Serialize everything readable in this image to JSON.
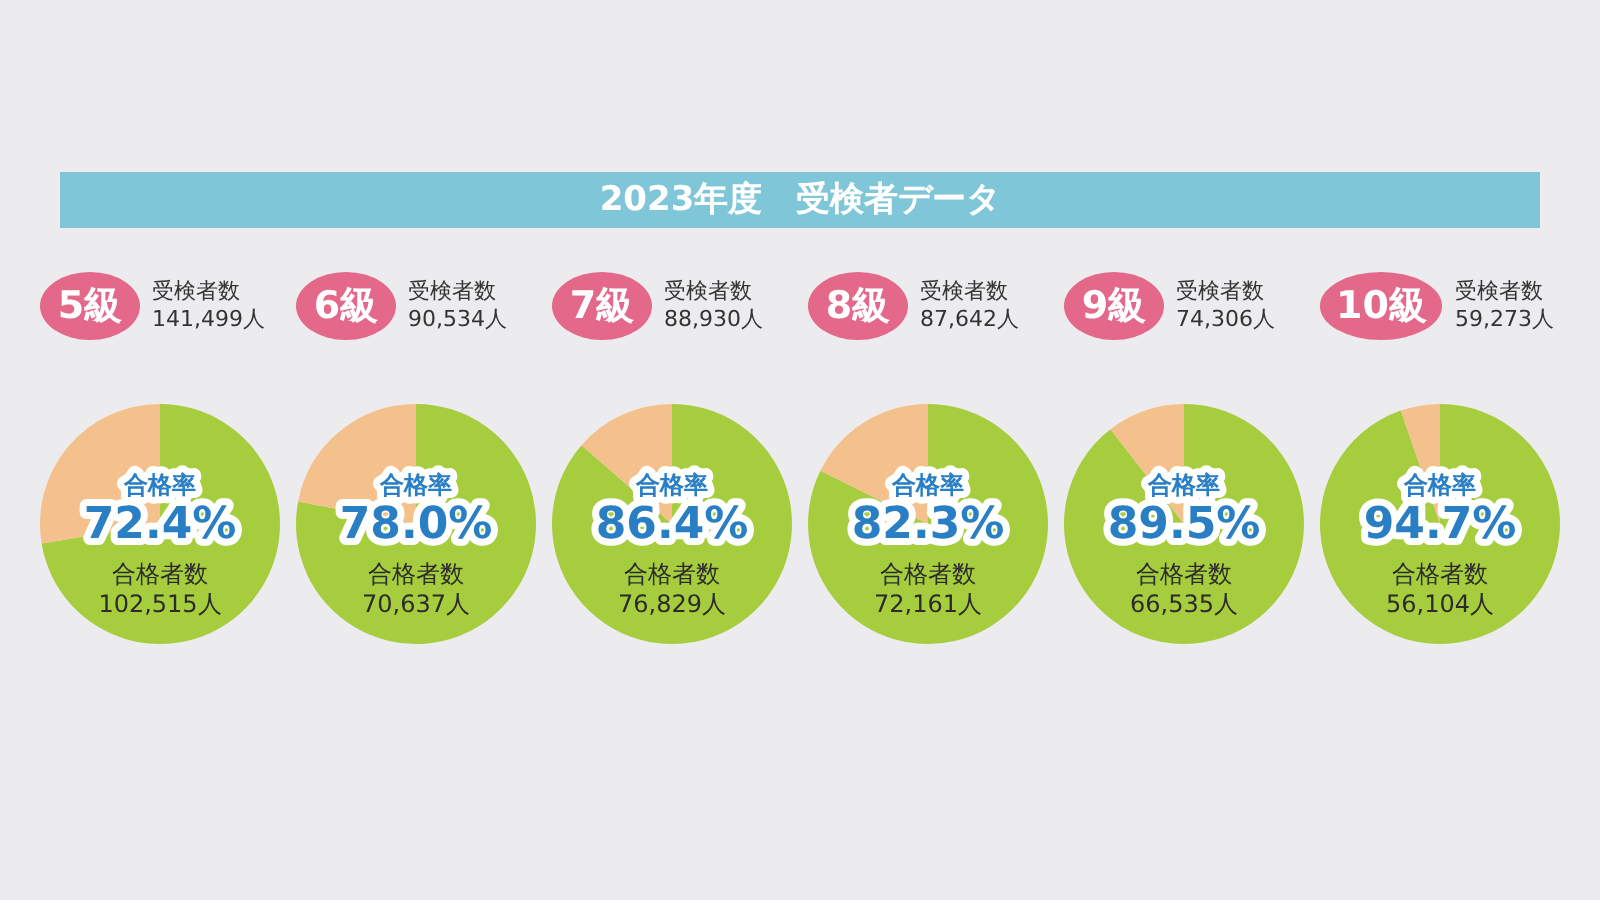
{
  "chart_data": [
    {
      "type": "other",
      "title": "2023年度　受検者データ"
    },
    {
      "type": "pie",
      "title": "5級",
      "subtitle": "受検者数\n141,499人",
      "categories": [
        null,
        null
      ],
      "values": [
        72.4,
        27.6
      ],
      "colors": [
        "#a6cd3e",
        "#f4c08c"
      ],
      "value_labels": [
        "合格率\n72.4%",
        null
      ],
      "annotations": [
        "合格者数\n102,515人"
      ]
    },
    {
      "type": "pie",
      "title": "6級",
      "subtitle": "受検者数\n90,534人",
      "categories": [
        null,
        null
      ],
      "values": [
        78.0,
        22.0
      ],
      "colors": [
        "#a6cd3e",
        "#f4c08c"
      ],
      "value_labels": [
        "合格率\n78.0%",
        null
      ],
      "annotations": [
        "合格者数\n70,637人"
      ]
    },
    {
      "type": "pie",
      "title": "7級",
      "subtitle": "受検者数\n88,930人",
      "categories": [
        null,
        null
      ],
      "values": [
        86.4,
        13.6
      ],
      "colors": [
        "#a6cd3e",
        "#f4c08c"
      ],
      "value_labels": [
        "合格率\n86.4%",
        null
      ],
      "annotations": [
        "合格者数\n76,829人"
      ]
    },
    {
      "type": "pie",
      "title": "8級",
      "subtitle": "受検者数\n87,642人",
      "categories": [
        null,
        null
      ],
      "values": [
        82.3,
        17.7
      ],
      "colors": [
        "#a6cd3e",
        "#f4c08c"
      ],
      "value_labels": [
        "合格率\n82.3%",
        null
      ],
      "annotations": [
        "合格者数\n72,161人"
      ]
    },
    {
      "type": "pie",
      "title": "9級",
      "subtitle": "受検者数\n74,306人",
      "categories": [
        null,
        null
      ],
      "values": [
        89.5,
        10.5
      ],
      "colors": [
        "#a6cd3e",
        "#f4c08c"
      ],
      "value_labels": [
        "合格率\n89.5%",
        null
      ],
      "annotations": [
        "合格者数\n66,535人"
      ]
    },
    {
      "type": "pie",
      "title": "10級",
      "subtitle": "受検者数\n59,273人",
      "categories": [
        null,
        null
      ],
      "values": [
        94.7,
        5.3
      ],
      "colors": [
        "#a6cd3e",
        "#f4c08c"
      ],
      "value_labels": [
        "合格率\n94.7%",
        null
      ],
      "annotations": [
        "合格者数\n56,104人"
      ]
    }
  ]
}
